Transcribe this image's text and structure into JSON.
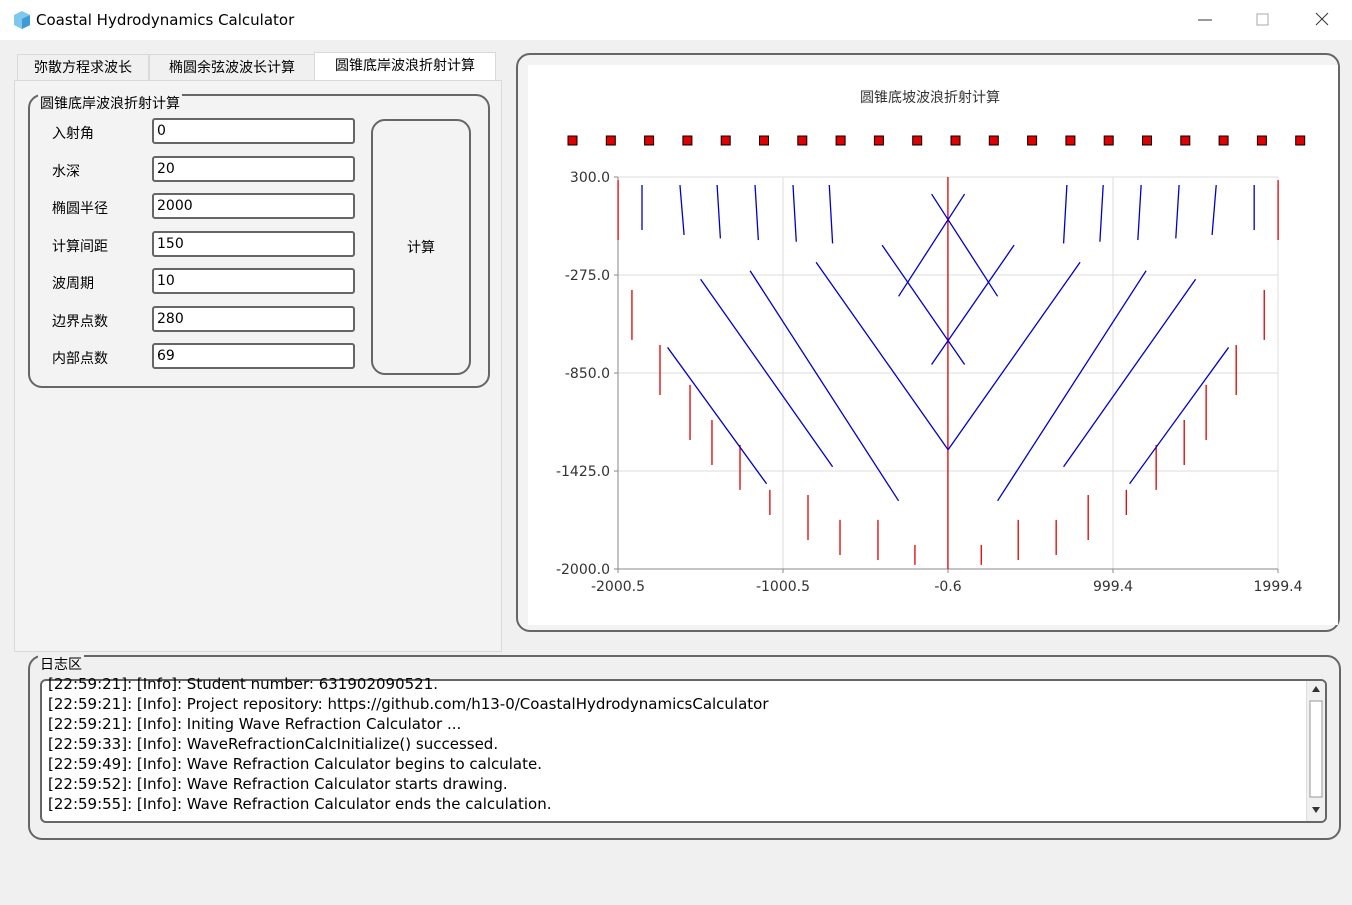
{
  "window": {
    "title": "Coastal Hydrodynamics Calculator"
  },
  "tabs": [
    "弥散方程求波长",
    "椭圆余弦波波长计算",
    "圆锥底岸波浪折射计算"
  ],
  "group": {
    "title": "圆锥底岸波浪折射计算",
    "fields": [
      {
        "label": "入射角",
        "value": "0"
      },
      {
        "label": "水深",
        "value": "20"
      },
      {
        "label": "椭圆半径",
        "value": "2000"
      },
      {
        "label": "计算间距",
        "value": "150"
      },
      {
        "label": "波周期",
        "value": "10"
      },
      {
        "label": "边界点数",
        "value": "280"
      },
      {
        "label": "内部点数",
        "value": "69"
      }
    ],
    "button": "计算"
  },
  "chart_data": {
    "type": "line",
    "title": "圆锥底坡波浪折射计算",
    "xlim": [
      -2000.5,
      1999.4
    ],
    "xticks": [
      -2000.5,
      -1000.5,
      -0.6,
      999.4,
      1999.4
    ],
    "ylim": [
      -2000,
      300
    ],
    "yticks": [
      {
        "value": 300,
        "label": "300.0"
      },
      {
        "value": -275,
        "label": "-275.0"
      },
      {
        "value": -850,
        "label": "-850.0"
      },
      {
        "value": -1425,
        "label": "-1425.0"
      },
      {
        "value": -2000,
        "label": "-2000.0"
      }
    ],
    "grid": true,
    "series": [
      {
        "color": "#e00000",
        "x": [
          -2000,
          -2000,
          null,
          -1916,
          -1916,
          null,
          -1746,
          -1746,
          null,
          -1564,
          -1564,
          null,
          -1431,
          -1431,
          null,
          -1261,
          -1261,
          null,
          -1080,
          -1080,
          null,
          -849,
          -849,
          null,
          -655,
          -655,
          null,
          -425,
          -425,
          null,
          -201,
          -201,
          null,
          -1,
          -1,
          null,
          201,
          201,
          null,
          425,
          425,
          null,
          655,
          655,
          null,
          849,
          849,
          null,
          1080,
          1080,
          null,
          1261,
          1261,
          null,
          1431,
          1431,
          null,
          1564,
          1564,
          null,
          1746,
          1746,
          null,
          1916,
          1916,
          null,
          2000,
          2000
        ],
        "values": [
          282,
          -70,
          null,
          -363,
          -656,
          null,
          -686,
          -979,
          null,
          -920,
          -1243,
          null,
          -1126,
          -1390,
          null,
          -1272,
          -1536,
          null,
          -1536,
          -1683,
          null,
          -1566,
          -1830,
          null,
          -1712,
          -1918,
          null,
          -1712,
          -1947,
          null,
          -1859,
          -1976,
          null,
          300,
          -2000,
          null,
          -1859,
          -1976,
          null,
          -1712,
          -1947,
          null,
          -1712,
          -1918,
          null,
          -1566,
          -1830,
          null,
          -1536,
          -1683,
          null,
          -1272,
          -1536,
          null,
          -1126,
          -1390,
          null,
          -920,
          -1243,
          null,
          -686,
          -979,
          null,
          -363,
          -656,
          null,
          282,
          -70
        ]
      },
      {
        "color": "#0000c8",
        "x": [
          -1855,
          -1855,
          null,
          -1625,
          -1600,
          null,
          -1400,
          -1380,
          null,
          -1170,
          -1150,
          null,
          -940,
          -920,
          null,
          -720,
          -700,
          null,
          1855,
          1855,
          null,
          1625,
          1600,
          null,
          1400,
          1380,
          null,
          1170,
          1150,
          null,
          940,
          920,
          null,
          720,
          700,
          null,
          -1500,
          -700,
          null,
          -1200,
          -300,
          null,
          -800,
          0,
          null,
          -400,
          100,
          null,
          -1700,
          -1100,
          null,
          1500,
          700,
          null,
          1200,
          300,
          null,
          800,
          0,
          null,
          400,
          -100,
          null,
          1700,
          1100,
          null,
          100,
          -300,
          null,
          -100,
          300
        ],
        "values": [
          253,
          -11,
          null,
          253,
          -40,
          null,
          253,
          -60,
          null,
          253,
          -70,
          null,
          253,
          -80,
          null,
          253,
          -90,
          null,
          253,
          -11,
          null,
          253,
          -40,
          null,
          253,
          -60,
          null,
          253,
          -70,
          null,
          253,
          -80,
          null,
          253,
          -90,
          null,
          -300,
          -1400,
          null,
          -250,
          -1600,
          null,
          -200,
          -1300,
          null,
          -100,
          -800,
          null,
          -700,
          -1500,
          null,
          -300,
          -1400,
          null,
          -250,
          -1600,
          null,
          -200,
          -1300,
          null,
          -100,
          -800,
          null,
          -700,
          -1500,
          null,
          200,
          -400,
          null,
          200,
          -400
        ]
      }
    ]
  },
  "log": {
    "title": "日志区",
    "lines": [
      "[22:59:21]: [Info]: Student number: 631902090521.",
      "[22:59:21]: [Info]: Project repository: https://github.com/h13-0/CoastalHydrodynamicsCalculator",
      "[22:59:21]: [Info]: Initing Wave Refraction Calculator ...",
      "[22:59:33]: [Info]: WaveRefractionCalcInitialize() successed.",
      "[22:59:49]: [Info]: Wave Refraction Calculator begins to calculate.",
      "[22:59:52]: [Info]: Wave Refraction Calculator starts drawing.",
      "[22:59:55]: [Info]: Wave Refraction Calculator ends the calculation."
    ]
  }
}
